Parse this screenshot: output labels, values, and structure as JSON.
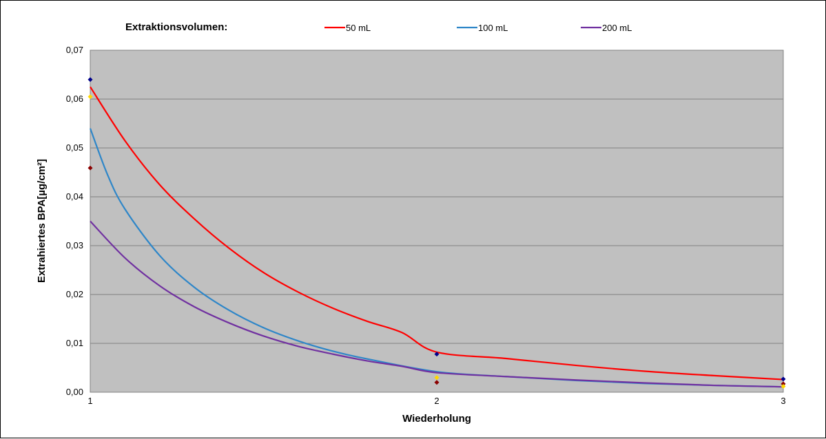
{
  "chart_data": {
    "type": "line",
    "title": "",
    "legend_title": "Extraktionsvolumen:",
    "legend_position": "top",
    "xlabel": "Wiederholung",
    "ylabel": "Extrahiertes BPA[µg/cm²]",
    "xlim": [
      1,
      3
    ],
    "ylim": [
      0,
      0.07
    ],
    "x_ticks": [
      "1",
      "2",
      "3"
    ],
    "y_ticks": [
      "0,00",
      "0,01",
      "0,02",
      "0,03",
      "0,04",
      "0,05",
      "0,06",
      "0,07"
    ],
    "grid": true,
    "plot_background": "#c0c0c0",
    "series": [
      {
        "name": "50 mL",
        "color": "#ff0000",
        "curve": [
          [
            1.0,
            0.0625
          ],
          [
            1.1,
            0.0515
          ],
          [
            1.2,
            0.0425
          ],
          [
            1.3,
            0.0355
          ],
          [
            1.4,
            0.0295
          ],
          [
            1.5,
            0.0245
          ],
          [
            1.6,
            0.0205
          ],
          [
            1.7,
            0.0172
          ],
          [
            1.8,
            0.0145
          ],
          [
            1.9,
            0.0122
          ],
          [
            2.0,
            0.0082
          ],
          [
            2.2,
            0.0069
          ],
          [
            2.4,
            0.0055
          ],
          [
            2.6,
            0.0043
          ],
          [
            2.8,
            0.0034
          ],
          [
            3.0,
            0.0026
          ]
        ]
      },
      {
        "name": "100 mL",
        "color": "#2e86c8",
        "curve": [
          [
            1.0,
            0.054
          ],
          [
            1.05,
            0.0445
          ],
          [
            1.1,
            0.0375
          ],
          [
            1.2,
            0.028
          ],
          [
            1.3,
            0.0215
          ],
          [
            1.4,
            0.0168
          ],
          [
            1.5,
            0.0132
          ],
          [
            1.6,
            0.0105
          ],
          [
            1.7,
            0.0084
          ],
          [
            1.8,
            0.0068
          ],
          [
            2.0,
            0.0042
          ],
          [
            2.2,
            0.0032
          ],
          [
            2.4,
            0.0024
          ],
          [
            2.6,
            0.0018
          ],
          [
            2.8,
            0.0014
          ],
          [
            3.0,
            0.0011
          ]
        ]
      },
      {
        "name": "200 mL",
        "color": "#7030a0",
        "curve": [
          [
            1.0,
            0.035
          ],
          [
            1.1,
            0.0275
          ],
          [
            1.2,
            0.0218
          ],
          [
            1.3,
            0.0175
          ],
          [
            1.4,
            0.0142
          ],
          [
            1.5,
            0.0115
          ],
          [
            1.6,
            0.0094
          ],
          [
            1.7,
            0.0078
          ],
          [
            1.8,
            0.0064
          ],
          [
            1.9,
            0.0053
          ],
          [
            2.0,
            0.004
          ],
          [
            2.2,
            0.0032
          ],
          [
            2.4,
            0.0025
          ],
          [
            2.6,
            0.0019
          ],
          [
            2.8,
            0.0014
          ],
          [
            3.0,
            0.0011
          ]
        ]
      }
    ],
    "points": [
      {
        "x": 1,
        "y": 0.064,
        "color": "#00008b"
      },
      {
        "x": 1,
        "y": 0.0605,
        "color": "#ffd700"
      },
      {
        "x": 1,
        "y": 0.0459,
        "color": "#8b0000"
      },
      {
        "x": 2,
        "y": 0.0078,
        "color": "#00008b"
      },
      {
        "x": 2,
        "y": 0.003,
        "color": "#ffd700"
      },
      {
        "x": 2,
        "y": 0.002,
        "color": "#8b0000"
      },
      {
        "x": 3,
        "y": 0.0027,
        "color": "#00008b"
      },
      {
        "x": 3,
        "y": 0.0017,
        "color": "#8b0000"
      },
      {
        "x": 3,
        "y": 0.0012,
        "color": "#ffd700"
      }
    ]
  }
}
